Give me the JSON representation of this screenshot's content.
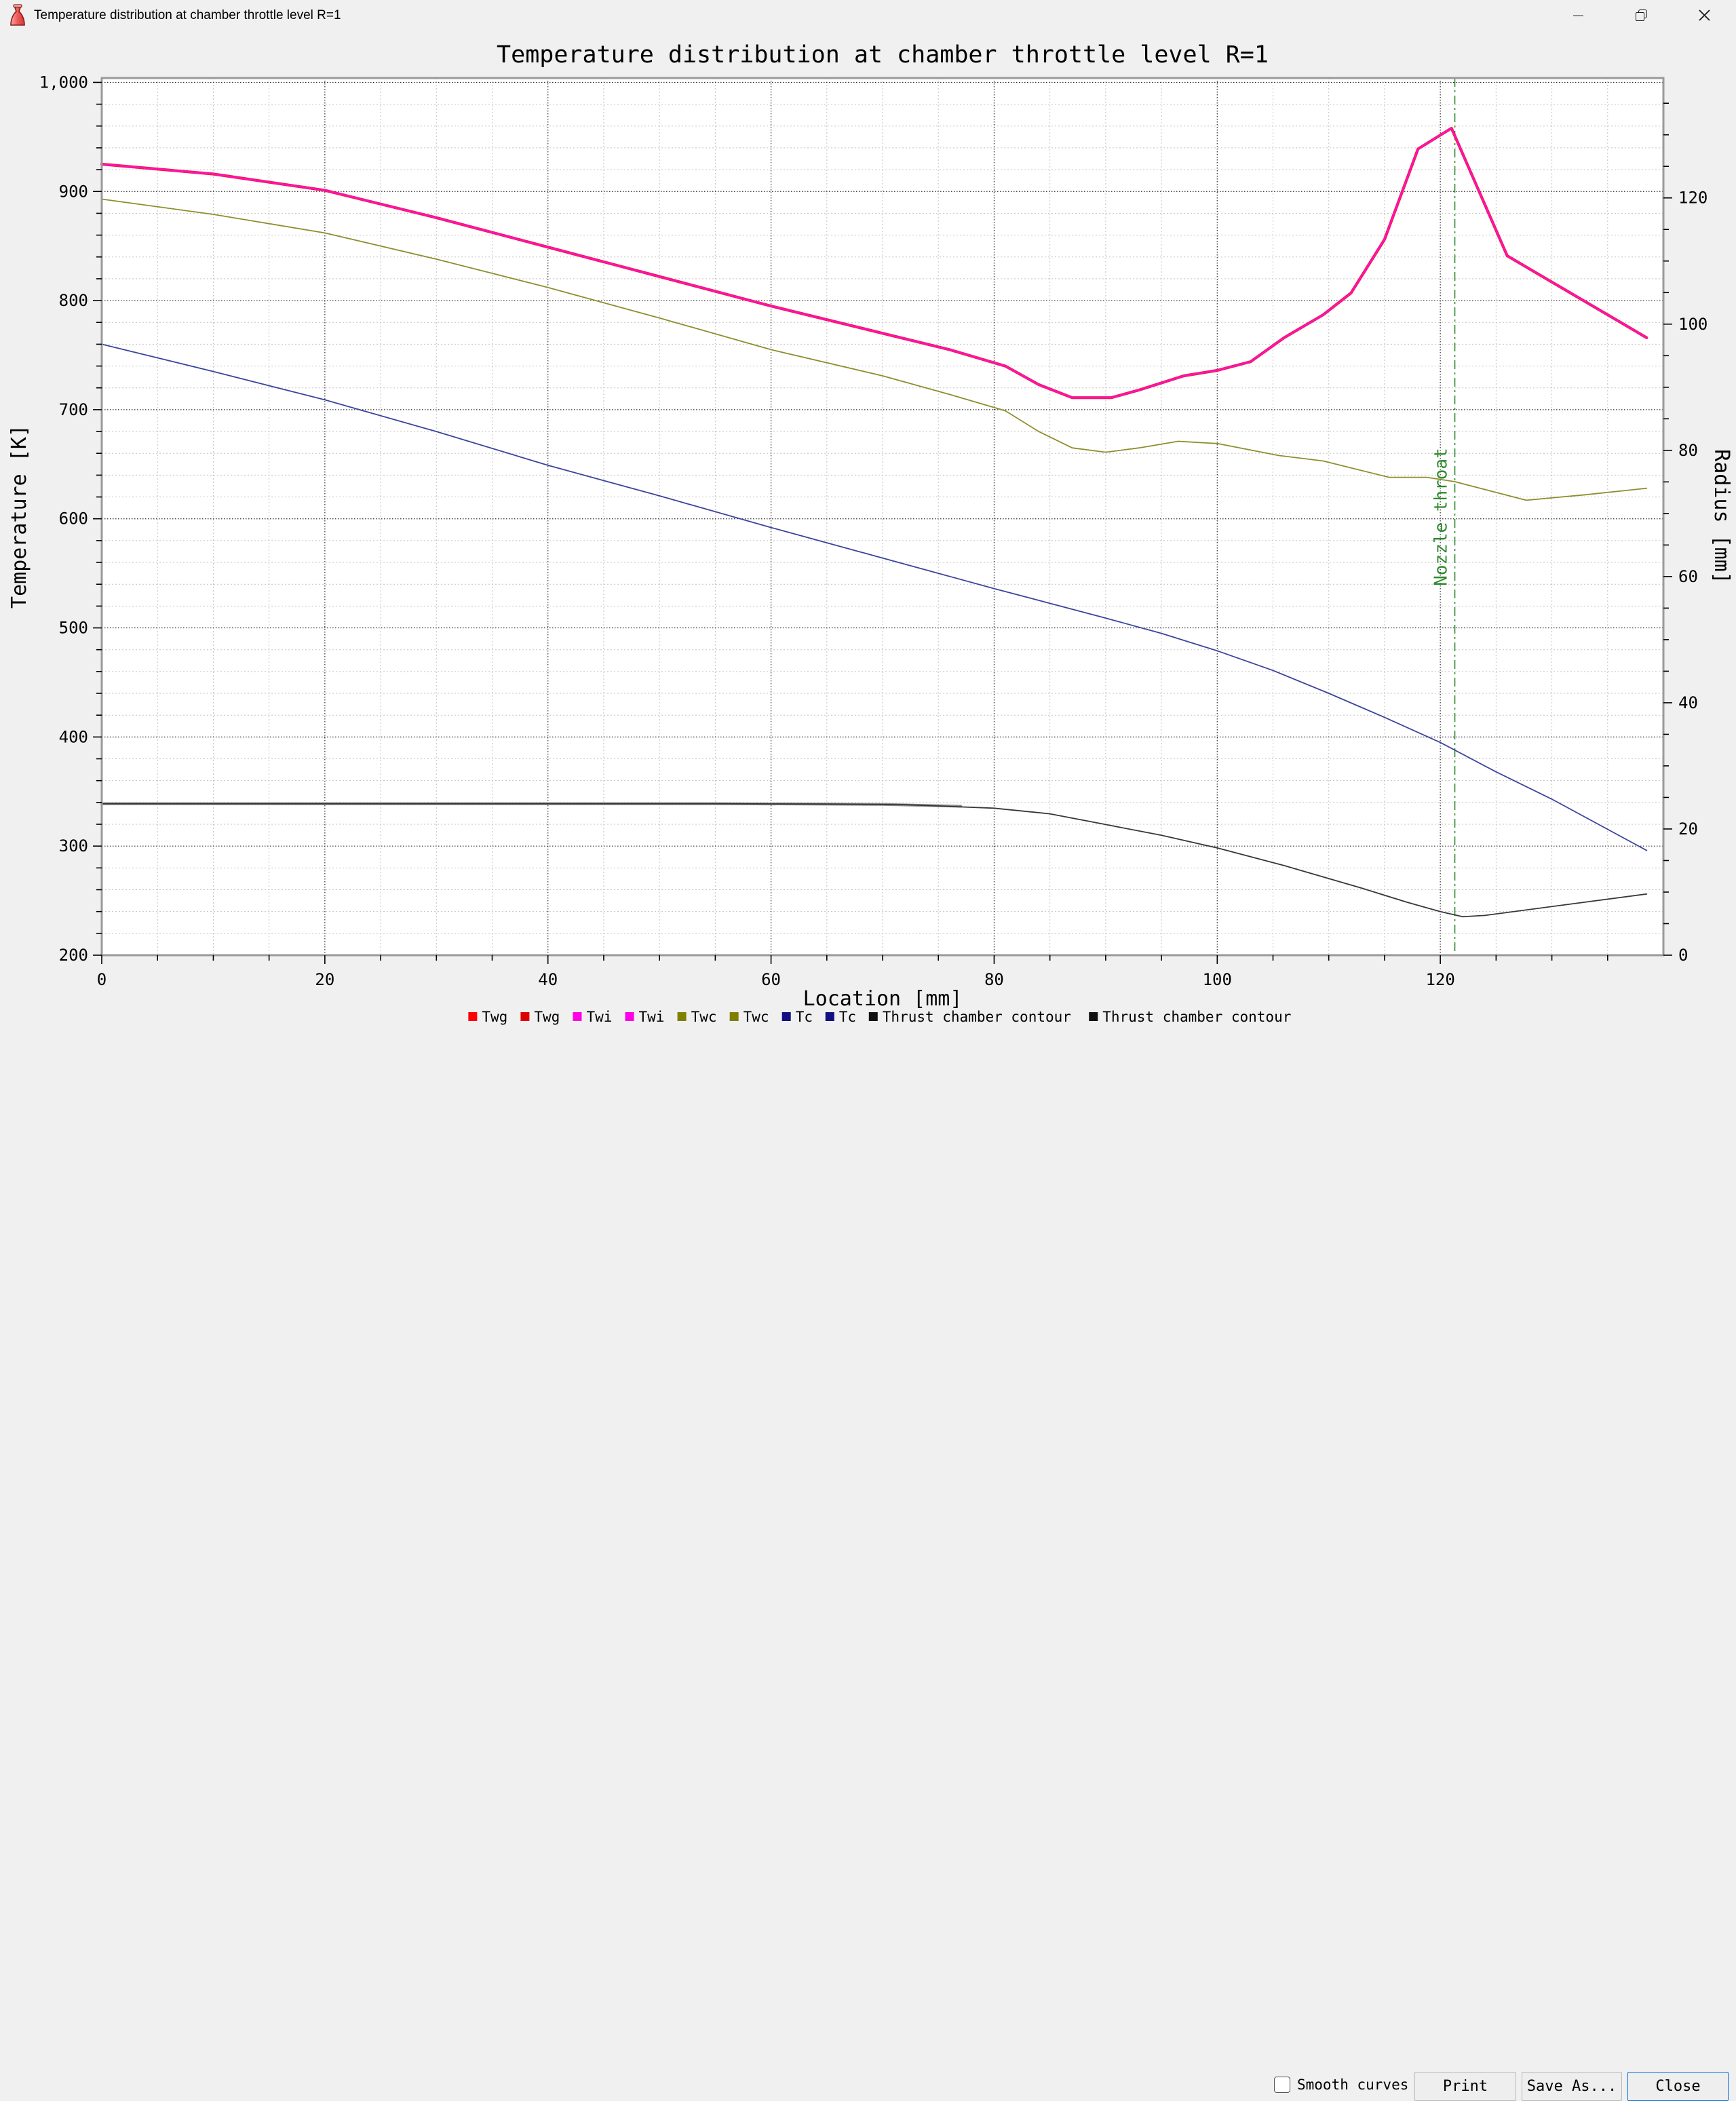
{
  "window": {
    "title": "Temperature distribution at chamber throttle level R=1",
    "icons": {
      "app": "nozzle-icon",
      "minimize": "minimize-icon",
      "maximize": "restore-icon",
      "close": "close-icon"
    }
  },
  "footer": {
    "smooth_label": "Smooth curves",
    "smooth_checked": false,
    "print_label": "Print",
    "save_as_label": "Save As...",
    "close_label": "Close"
  },
  "chart_data": {
    "type": "line",
    "title": "Temperature distribution at chamber throttle level R=1",
    "xlabel": "Location [mm]",
    "ylabel_left": "Temperature [K]",
    "ylabel_right": "Radius [mm]",
    "xlim": [
      0,
      140
    ],
    "ylim_left": [
      200,
      1004
    ],
    "ylim_right": [
      0,
      139
    ],
    "grid": {
      "major_color": "#2b2b2b",
      "minor_color": "#c3c3c3",
      "major_dash": "1.5 2.5",
      "minor_dash": "2 3"
    },
    "x_ticks": {
      "values": [
        0,
        20,
        40,
        60,
        80,
        100,
        120
      ],
      "labels": [
        "0",
        "20",
        "40",
        "60",
        "80",
        "100",
        "120"
      ],
      "minor_step": 5,
      "minor_max": 135
    },
    "y_ticks_left": {
      "values": [
        200,
        300,
        400,
        500,
        600,
        700,
        800,
        900,
        1000
      ],
      "labels": [
        "200",
        "300",
        "400",
        "500",
        "600",
        "700",
        "800",
        "900",
        "1,000"
      ],
      "minor_step": 20
    },
    "y_ticks_right": {
      "values": [
        0,
        20,
        40,
        60,
        80,
        100,
        120
      ],
      "labels": [
        "0",
        "20",
        "40",
        "60",
        "80",
        "100",
        "120"
      ],
      "minor_step": 5,
      "minor_max": 135
    },
    "annotation": {
      "label": "Nozzle throat",
      "x": 121.3,
      "color": "#2e8b2e"
    },
    "series": [
      {
        "name": "Twg",
        "axis": "left",
        "color": "#e81c24",
        "width": 4.2,
        "points": [
          [
            0,
            925
          ],
          [
            10,
            916
          ],
          [
            20,
            901
          ],
          [
            30,
            876
          ],
          [
            40,
            849
          ],
          [
            50,
            822
          ],
          [
            60,
            795
          ],
          [
            70,
            770
          ],
          [
            76,
            755
          ],
          [
            81,
            740
          ],
          [
            84,
            723
          ],
          [
            87,
            711
          ],
          [
            90.5,
            711
          ],
          [
            93,
            718
          ],
          [
            97,
            731
          ],
          [
            100,
            736
          ],
          [
            103,
            744
          ],
          [
            106,
            766
          ],
          [
            109.5,
            787
          ],
          [
            112,
            807
          ],
          [
            115,
            856
          ],
          [
            118,
            939
          ],
          [
            121,
            958
          ],
          [
            126,
            841
          ],
          [
            138.5,
            766
          ]
        ]
      },
      {
        "name": "Twi",
        "axis": "left",
        "color": "#ff10b8",
        "width": 2.8,
        "points": [
          [
            0,
            925
          ],
          [
            10,
            916
          ],
          [
            20,
            901
          ],
          [
            30,
            876
          ],
          [
            40,
            849
          ],
          [
            50,
            822
          ],
          [
            60,
            795
          ],
          [
            70,
            770
          ],
          [
            76,
            755
          ],
          [
            81,
            740
          ],
          [
            84,
            723
          ],
          [
            87,
            711
          ],
          [
            90.5,
            711
          ],
          [
            93,
            718
          ],
          [
            97,
            731
          ],
          [
            100,
            736
          ],
          [
            103,
            744
          ],
          [
            106,
            766
          ],
          [
            109.5,
            787
          ],
          [
            112,
            807
          ],
          [
            115,
            856
          ],
          [
            118,
            939
          ],
          [
            121,
            958
          ],
          [
            126,
            841
          ],
          [
            138.5,
            766
          ]
        ]
      },
      {
        "name": "Twc",
        "axis": "left",
        "color": "#8e8e2e",
        "width": 1.8,
        "points": [
          [
            0,
            893
          ],
          [
            10,
            879
          ],
          [
            20,
            862
          ],
          [
            30,
            838
          ],
          [
            40,
            812
          ],
          [
            50,
            784
          ],
          [
            60,
            755
          ],
          [
            70,
            731
          ],
          [
            76,
            714
          ],
          [
            81,
            699
          ],
          [
            84,
            680
          ],
          [
            87,
            665
          ],
          [
            90,
            661
          ],
          [
            93,
            665
          ],
          [
            96.5,
            671
          ],
          [
            100,
            669
          ],
          [
            105.5,
            658
          ],
          [
            109.5,
            653
          ],
          [
            115.4,
            638
          ],
          [
            118.8,
            638
          ],
          [
            121.3,
            634
          ],
          [
            127.7,
            617
          ],
          [
            133,
            622
          ],
          [
            138.5,
            628
          ]
        ]
      },
      {
        "name": "Tc",
        "axis": "left",
        "color": "#3a459b",
        "width": 1.8,
        "points": [
          [
            0,
            760
          ],
          [
            10,
            735
          ],
          [
            20,
            709
          ],
          [
            30,
            680
          ],
          [
            40,
            649
          ],
          [
            50,
            621
          ],
          [
            60,
            592
          ],
          [
            70,
            564
          ],
          [
            80,
            536
          ],
          [
            90,
            509
          ],
          [
            95,
            495
          ],
          [
            100,
            479
          ],
          [
            105,
            461
          ],
          [
            110,
            440
          ],
          [
            115,
            418
          ],
          [
            120,
            395
          ],
          [
            125,
            368
          ],
          [
            130,
            343
          ],
          [
            138.5,
            296
          ]
        ]
      },
      {
        "name": "Thrust chamber contour",
        "axis": "right",
        "color": "#8a8a8a",
        "width": 4,
        "points": [
          [
            0,
            24
          ],
          [
            55,
            24
          ],
          [
            70,
            23.9
          ],
          [
            77,
            23.6
          ]
        ]
      },
      {
        "name": "Thrust chamber contour",
        "axis": "right",
        "color": "#383838",
        "width": 1.8,
        "points": [
          [
            0,
            24
          ],
          [
            55,
            24
          ],
          [
            65,
            23.95
          ],
          [
            72,
            23.85
          ],
          [
            80,
            23.3
          ],
          [
            85,
            22.4
          ],
          [
            90,
            20.7
          ],
          [
            95,
            19
          ],
          [
            100,
            17
          ],
          [
            106,
            14.2
          ],
          [
            113,
            10.6
          ],
          [
            117,
            8.4
          ],
          [
            120,
            6.9
          ],
          [
            122,
            6.1
          ],
          [
            124,
            6.3
          ],
          [
            138.5,
            9.7
          ]
        ]
      }
    ],
    "legend": [
      {
        "label": "Twg",
        "color": "#ff0000"
      },
      {
        "label": "Twg",
        "color": "#dd0000"
      },
      {
        "label": "Twi",
        "color": "#ff00e6"
      },
      {
        "label": "Twi",
        "color": "#ff00e6"
      },
      {
        "label": "Twc",
        "color": "#7f7f00"
      },
      {
        "label": "Twc",
        "color": "#7f7f00"
      },
      {
        "label": "Tc",
        "color": "#101080"
      },
      {
        "label": "Tc",
        "color": "#101080"
      },
      {
        "label": "Thrust chamber contour",
        "color": "#111111"
      },
      {
        "label": "Thrust chamber contour",
        "color": "#111111"
      }
    ]
  }
}
